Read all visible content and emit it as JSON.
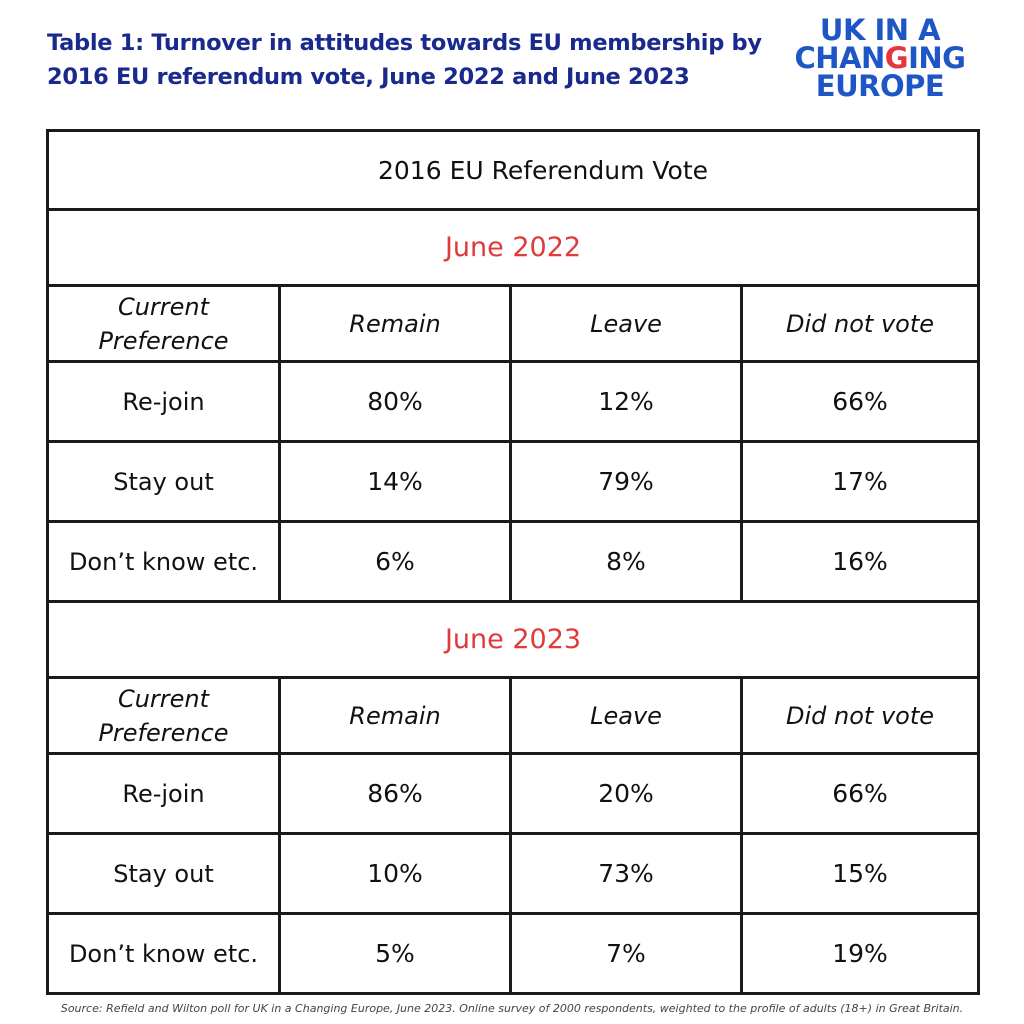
{
  "title_lines": [
    "Table 1: Turnover in attitudes towards EU membership by",
    "2016 EU referendum vote, June 2022 and June 2023"
  ],
  "logo": {
    "line1": "UK IN A",
    "line2_pre": "CHAN",
    "line2_accent": "G",
    "line2_post": "ING",
    "line3": "EUROPE"
  },
  "colors": {
    "title": "#1a2a8c",
    "logo": "#1e56c8",
    "accent": "#e8343f",
    "period": "#e03a3a"
  },
  "chart_data": {
    "type": "table",
    "header": "2016 EU Referendum Vote",
    "columns": [
      "Remain",
      "Leave",
      "Did not vote"
    ],
    "row_header_label": "Current Preference",
    "sections": [
      {
        "period": "June 2022",
        "rows": [
          {
            "label": "Re-join",
            "values": [
              "80%",
              "12%",
              "66%"
            ]
          },
          {
            "label": "Stay out",
            "values": [
              "14%",
              "79%",
              "17%"
            ]
          },
          {
            "label": "Don’t know etc.",
            "values": [
              "6%",
              "8%",
              "16%"
            ]
          }
        ]
      },
      {
        "period": "June 2023",
        "rows": [
          {
            "label": "Re-join",
            "values": [
              "86%",
              "20%",
              "66%"
            ]
          },
          {
            "label": "Stay out",
            "values": [
              "10%",
              "73%",
              "15%"
            ]
          },
          {
            "label": "Don’t know etc.",
            "values": [
              "5%",
              "7%",
              "19%"
            ]
          }
        ]
      }
    ]
  },
  "source": "Source: Refield and Wilton poll for UK in a Changing Europe, June 2023. Online survey of 2000 respondents, weighted to the profile of adults (18+) in Great Britain."
}
